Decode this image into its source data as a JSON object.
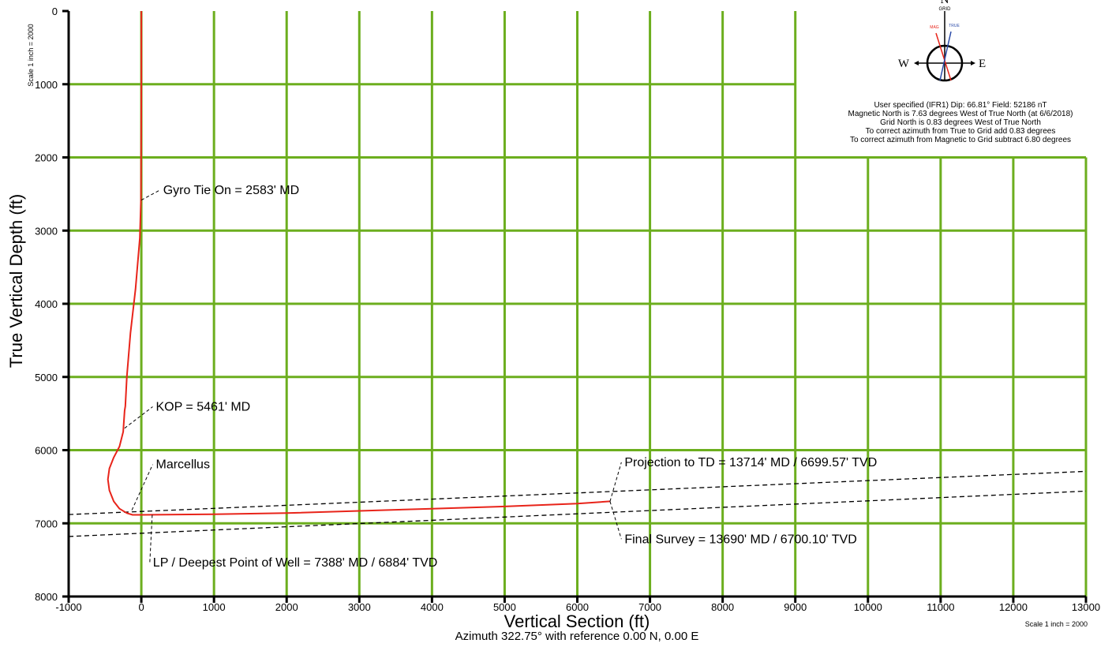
{
  "chart_data": {
    "type": "line",
    "xlabel": "Vertical Section (ft)",
    "ylabel": "True Vertical Depth (ft)",
    "subtitle": "Azimuth 322.75° with reference 0.00 N, 0.00 E",
    "xlim": [
      -1000,
      13000
    ],
    "ylim": [
      8000,
      0
    ],
    "x_ticks": [
      "-1000",
      "0",
      "1000",
      "2000",
      "3000",
      "4000",
      "5000",
      "6000",
      "7000",
      "8000",
      "9000",
      "10000",
      "11000",
      "12000",
      "13000"
    ],
    "y_ticks": [
      "0",
      "1000",
      "2000",
      "3000",
      "4000",
      "5000",
      "6000",
      "7000",
      "8000"
    ],
    "scale_left": "Scale 1 inch = 2000",
    "scale_right": "Scale 1 inch = 2000",
    "grid": true,
    "series": [
      {
        "color": "#e8241a",
        "x": [
          0,
          0,
          -5,
          -20,
          -80,
          -150,
          -200,
          -220,
          -230,
          -250,
          -300,
          -380,
          -440,
          -460,
          -440,
          -380,
          -300,
          -200,
          -120,
          0,
          500,
          1000,
          2000,
          3000,
          4000,
          5000,
          6000,
          6450
        ],
        "y": [
          0,
          1000,
          2583,
          3100,
          3800,
          4400,
          5000,
          5400,
          5461,
          5750,
          5950,
          6100,
          6250,
          6400,
          6550,
          6700,
          6800,
          6860,
          6884,
          6884,
          6880,
          6875,
          6860,
          6830,
          6800,
          6770,
          6730,
          6700
        ]
      }
    ],
    "formation_lines": [
      {
        "x": [
          -1000,
          13000
        ],
        "y": [
          6880,
          6290
        ]
      },
      {
        "x": [
          -1000,
          13000
        ],
        "y": [
          7180,
          6560
        ]
      }
    ],
    "annotations": [
      {
        "text": "Gyro Tie On = 2583' MD",
        "x": 0,
        "y": 2583,
        "tx": 300,
        "ty": 2500
      },
      {
        "text": "KOP = 5461' MD",
        "x": -230,
        "y": 5700,
        "tx": 200,
        "ty": 5461
      },
      {
        "text": "Marcellus",
        "x": -130,
        "y": 6820,
        "tx": 200,
        "ty": 6250
      },
      {
        "text": "Projection to TD = 13714' MD / 6699.57' TVD",
        "x": 6450,
        "y": 6700,
        "tx": 6650,
        "ty": 6220
      },
      {
        "text": "Final Survey = 13690' MD / 6700.10' TVD",
        "x": 6450,
        "y": 6700,
        "tx": 6650,
        "ty": 7270
      },
      {
        "text": "LP / Deepest Point of Well = 7388' MD / 6884' TVD",
        "x": 150,
        "y": 6884,
        "tx": 160,
        "ty": 7590
      }
    ],
    "compass": {
      "north": "N",
      "grid_label": "GRID",
      "west": "W",
      "east": "E",
      "mag_label": "MAG",
      "true_label": "TRUE"
    },
    "magnetic_info": [
      "User specified (IFR1) Dip: 66.81°  Field: 52186 nT",
      "Magnetic North is 7.63 degrees West of True North (at 6/6/2018)",
      "Grid North is 0.83 degrees West of True North",
      "To correct azimuth from True to Grid add 0.83 degrees",
      "To correct azimuth from Magnetic to Grid subtract 6.80 degrees"
    ],
    "colors": {
      "grid": "#6cae1e",
      "well_path": "#e8241a",
      "formation": "#000000"
    }
  }
}
